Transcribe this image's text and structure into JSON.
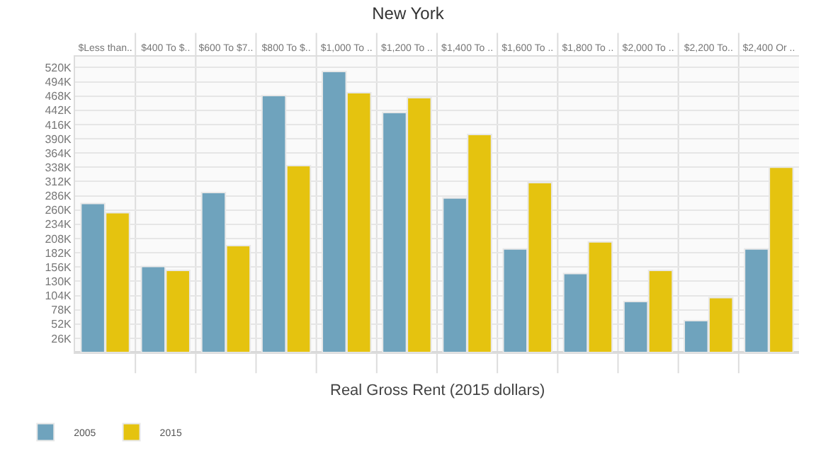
{
  "chart_data": {
    "type": "bar",
    "title": "New York",
    "xlabel": "Real Gross Rent (2015 dollars)",
    "categories": [
      "$Less than..",
      "$400 To $..",
      "$600 To $7..",
      "$800 To $..",
      "$1,000 To ..",
      "$1,200 To ..",
      "$1,400 To ..",
      "$1,600 To ..",
      "$1,800 To ..",
      "$2,000 To ..",
      "$2,200 To..",
      "$2,400 Or .."
    ],
    "series": [
      {
        "name": "2005",
        "color": "#6fa3bd",
        "values": [
          272000,
          157000,
          292000,
          469000,
          513000,
          438000,
          282000,
          189000,
          144000,
          93000,
          58000,
          189000
        ]
      },
      {
        "name": "2015",
        "color": "#e5c30f",
        "values": [
          255000,
          150000,
          195000,
          341000,
          474000,
          465000,
          398000,
          310000,
          202000,
          150000,
          100000,
          338000
        ]
      }
    ],
    "ylim": [
      0,
      540000
    ],
    "yticks": [
      {
        "value": 26000,
        "label": "26K"
      },
      {
        "value": 52000,
        "label": "52K"
      },
      {
        "value": 78000,
        "label": "78K"
      },
      {
        "value": 104000,
        "label": "104K"
      },
      {
        "value": 130000,
        "label": "130K"
      },
      {
        "value": 156000,
        "label": "156K"
      },
      {
        "value": 182000,
        "label": "182K"
      },
      {
        "value": 208000,
        "label": "208K"
      },
      {
        "value": 234000,
        "label": "234K"
      },
      {
        "value": 260000,
        "label": "260K"
      },
      {
        "value": 286000,
        "label": "286K"
      },
      {
        "value": 312000,
        "label": "312K"
      },
      {
        "value": 338000,
        "label": "338K"
      },
      {
        "value": 364000,
        "label": "364K"
      },
      {
        "value": 390000,
        "label": "390K"
      },
      {
        "value": 416000,
        "label": "416K"
      },
      {
        "value": 442000,
        "label": "442K"
      },
      {
        "value": 468000,
        "label": "468K"
      },
      {
        "value": 494000,
        "label": "494K"
      },
      {
        "value": 520000,
        "label": "520K"
      }
    ],
    "grid": "y",
    "legend": "bottom left"
  }
}
